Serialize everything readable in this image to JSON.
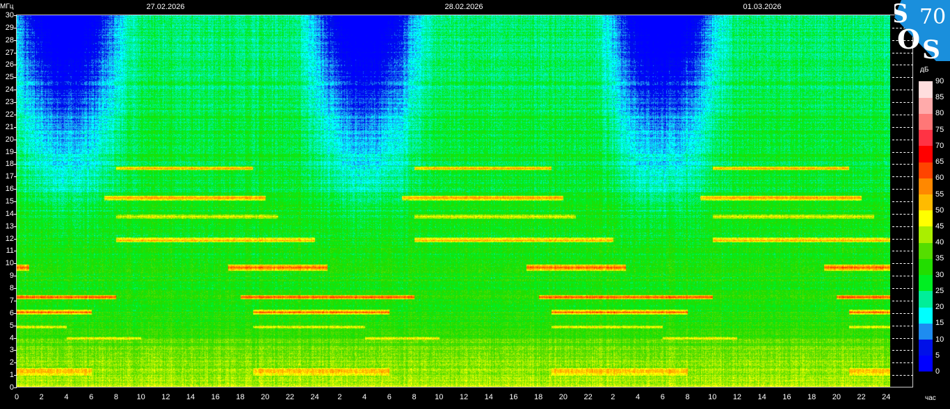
{
  "chart_data": {
    "type": "heatmap",
    "title": "",
    "dates": [
      "27.02.2026",
      "28.02.2026",
      "01.03.2026"
    ],
    "ylabel": "МГц",
    "xlabel": "час",
    "ylim": [
      0,
      30
    ],
    "xlim": [
      0,
      72
    ],
    "y_ticks": [
      "0",
      "1",
      "2",
      "3",
      "4",
      "5",
      "6",
      "7",
      "8",
      "9",
      "10",
      "11",
      "12",
      "13",
      "14",
      "15",
      "16",
      "17",
      "18",
      "19",
      "20",
      "21",
      "22",
      "23",
      "24",
      "25",
      "26",
      "27",
      "28",
      "29",
      "30"
    ],
    "x_ticks": [
      "0",
      "2",
      "4",
      "6",
      "8",
      "10",
      "12",
      "14",
      "16",
      "18",
      "20",
      "22",
      "24",
      "2",
      "4",
      "6",
      "8",
      "10",
      "12",
      "14",
      "16",
      "18",
      "20",
      "22",
      "2",
      "4",
      "6",
      "8",
      "10",
      "12",
      "14",
      "16",
      "18",
      "20",
      "22",
      "24"
    ],
    "data_end_hours": 70.3,
    "colorbar": {
      "label": "дБ",
      "ticks": [
        "0",
        "5",
        "10",
        "15",
        "20",
        "25",
        "30",
        "35",
        "40",
        "45",
        "50",
        "55",
        "60",
        "65",
        "70",
        "75",
        "80",
        "85",
        "90"
      ],
      "range": [
        0,
        90
      ],
      "colors": [
        "#0000ff",
        "#0010e8",
        "#1e8cf0",
        "#00ffff",
        "#00ee99",
        "#00ee22",
        "#22dd00",
        "#55dd00",
        "#aaee00",
        "#ffff00",
        "#ffbb00",
        "#ff8800",
        "#ff4400",
        "#ff0000",
        "#ff3344",
        "#ff7777",
        "#ffaaaa",
        "#ffdddd"
      ]
    }
  },
  "logo": {
    "text": "SOS70",
    "color": "#1a8fdc"
  }
}
